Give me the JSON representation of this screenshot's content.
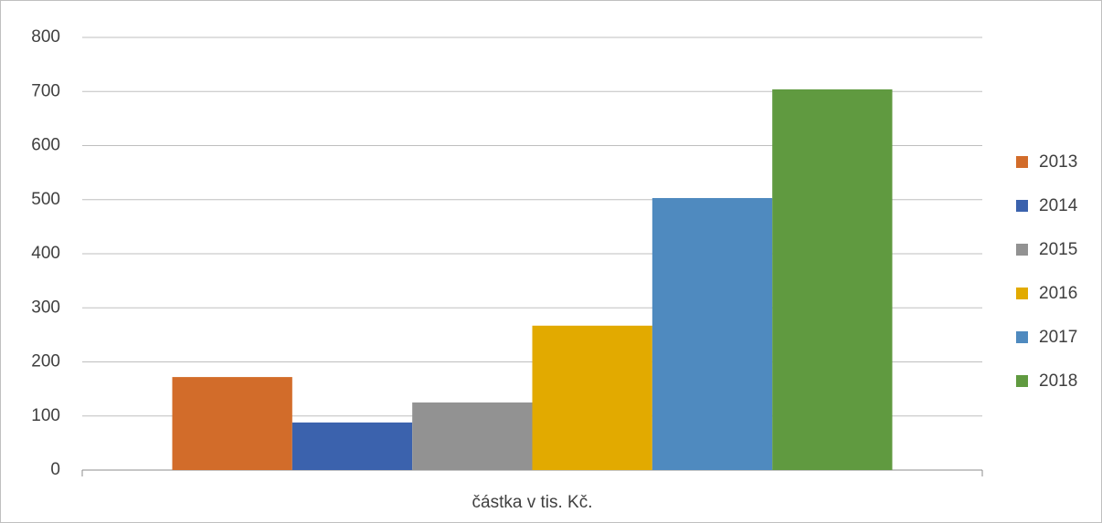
{
  "chart_data": {
    "type": "bar",
    "categories": [
      "částka v tis. Kč."
    ],
    "series": [
      {
        "name": "2013",
        "color": "#d26c2a",
        "values": [
          172
        ]
      },
      {
        "name": "2014",
        "color": "#3b62ad",
        "values": [
          88
        ]
      },
      {
        "name": "2015",
        "color": "#929292",
        "values": [
          125
        ]
      },
      {
        "name": "2016",
        "color": "#e2aa00",
        "values": [
          267
        ]
      },
      {
        "name": "2017",
        "color": "#4f8abf",
        "values": [
          503
        ]
      },
      {
        "name": "2018",
        "color": "#609a40",
        "values": [
          704
        ]
      }
    ],
    "ylim": [
      0,
      800
    ],
    "yticks": [
      0,
      100,
      200,
      300,
      400,
      500,
      600,
      700,
      800
    ],
    "grid": true,
    "legend": "right"
  }
}
